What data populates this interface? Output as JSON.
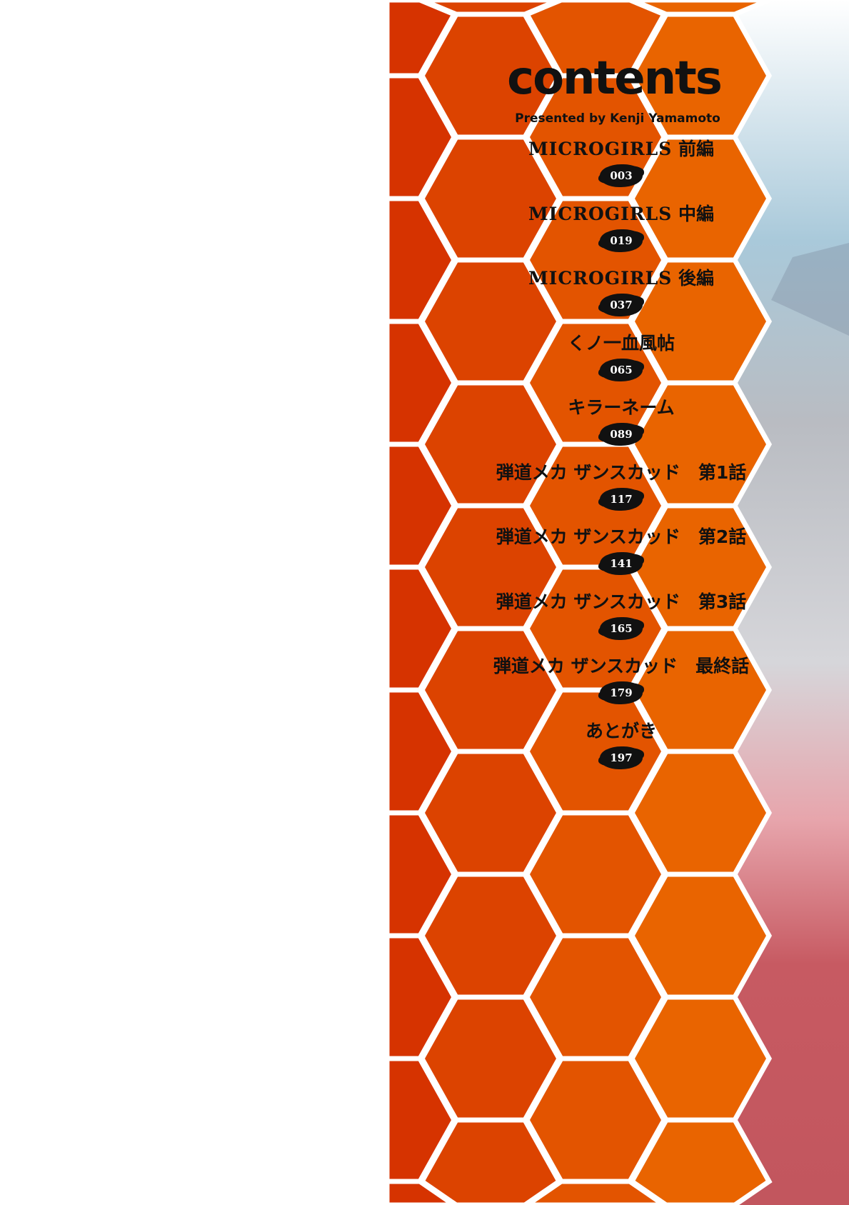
{
  "header": {
    "title": "contents",
    "subtitle": "Presented by Kenji Yamamoto"
  },
  "colors": {
    "orange_left": "#d63300",
    "orange_right": "#e96400",
    "hex_border": "#ffffff"
  },
  "entries": [
    {
      "latin": "MICROGIRLS",
      "jp": "前編",
      "page": "003"
    },
    {
      "latin": "MICROGIRLS",
      "jp": "中編",
      "page": "019"
    },
    {
      "latin": "MICROGIRLS",
      "jp": "後編",
      "page": "037"
    },
    {
      "latin": "",
      "jp": "くノ一血風帖",
      "page": "065"
    },
    {
      "latin": "",
      "jp": "キラーネーム",
      "page": "089"
    },
    {
      "latin": "",
      "jp": "弾道メカ ザンスカッド　第1話",
      "page": "117"
    },
    {
      "latin": "",
      "jp": "弾道メカ ザンスカッド　第2話",
      "page": "141"
    },
    {
      "latin": "",
      "jp": "弾道メカ ザンスカッド　第3話",
      "page": "165"
    },
    {
      "latin": "",
      "jp": "弾道メカ ザンスカッド　最終話",
      "page": "179"
    },
    {
      "latin": "",
      "jp": "あとがき",
      "page": "197"
    }
  ]
}
